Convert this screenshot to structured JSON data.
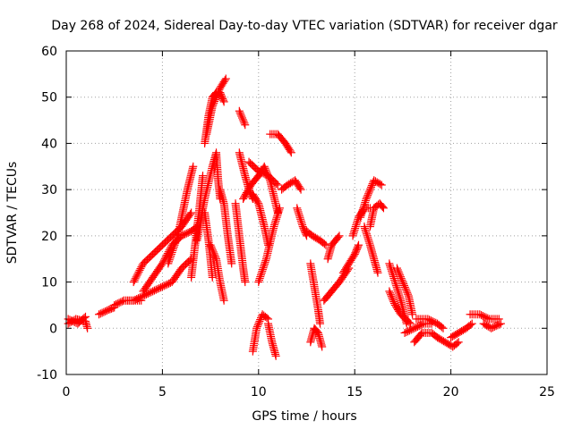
{
  "chart_data": {
    "type": "scatter",
    "title": "Day 268 of 2024, Sidereal Day-to-day VTEC variation (SDTVAR) for receiver dgar",
    "xlabel": "GPS time / hours",
    "ylabel": "SDTVAR / TECUs",
    "xlim": [
      0,
      25
    ],
    "ylim": [
      -10,
      60
    ],
    "xticks": [
      "0",
      "5",
      "10",
      "15",
      "20",
      "25"
    ],
    "yticks": [
      "-10",
      "0",
      "10",
      "20",
      "30",
      "40",
      "50",
      "60"
    ],
    "grid": true,
    "marker": "plus",
    "color": "#ff0000",
    "series": [
      {
        "name": "SDTVAR",
        "tracks": [
          [
            [
              0.1,
              1
            ],
            [
              0.5,
              2
            ],
            [
              1.0,
              1.5
            ],
            [
              1.1,
              0
            ]
          ],
          [
            [
              0.1,
              2
            ],
            [
              0.6,
              1
            ],
            [
              1.0,
              2.5
            ]
          ],
          [
            [
              1.7,
              3
            ],
            [
              2.2,
              4
            ],
            [
              2.5,
              4.5
            ]
          ],
          [
            [
              2.5,
              5
            ],
            [
              3.0,
              6
            ],
            [
              3.5,
              6
            ],
            [
              3.9,
              6
            ]
          ],
          [
            [
              3.0,
              6
            ],
            [
              3.5,
              6
            ],
            [
              4.0,
              7
            ],
            [
              4.5,
              8
            ],
            [
              5.0,
              9
            ],
            [
              5.5,
              10
            ],
            [
              6.0,
              13
            ],
            [
              6.5,
              15
            ]
          ],
          [
            [
              3.5,
              10
            ],
            [
              4.0,
              14
            ],
            [
              4.5,
              16
            ],
            [
              5.0,
              18
            ],
            [
              5.5,
              20
            ],
            [
              6.0,
              22
            ],
            [
              6.5,
              25
            ]
          ],
          [
            [
              4.0,
              8
            ],
            [
              4.5,
              11
            ],
            [
              5.0,
              14
            ],
            [
              5.5,
              18
            ],
            [
              6.0,
              20
            ],
            [
              6.5,
              21
            ],
            [
              6.8,
              22
            ]
          ],
          [
            [
              5.3,
              14
            ],
            [
              5.8,
              20
            ],
            [
              6.3,
              30
            ],
            [
              6.6,
              35
            ]
          ],
          [
            [
              6.5,
              11
            ],
            [
              6.9,
              25
            ],
            [
              7.1,
              33
            ]
          ],
          [
            [
              6.8,
              19
            ],
            [
              7.2,
              28
            ],
            [
              7.6,
              35
            ],
            [
              7.8,
              38
            ],
            [
              7.9,
              32
            ],
            [
              8.0,
              28
            ]
          ],
          [
            [
              7.2,
              40
            ],
            [
              7.4,
              46
            ],
            [
              7.6,
              50
            ],
            [
              7.8,
              51
            ],
            [
              8.0,
              51
            ],
            [
              8.2,
              49
            ]
          ],
          [
            [
              7.3,
              42
            ],
            [
              7.6,
              48
            ],
            [
              8.0,
              52
            ],
            [
              8.3,
              54
            ]
          ],
          [
            [
              7.2,
              25
            ],
            [
              7.4,
              19
            ],
            [
              7.6,
              11
            ]
          ],
          [
            [
              7.5,
              18
            ],
            [
              7.8,
              15
            ],
            [
              8.0,
              10
            ],
            [
              8.2,
              6
            ]
          ],
          [
            [
              8.0,
              30
            ],
            [
              8.2,
              27
            ],
            [
              8.4,
              20
            ],
            [
              8.6,
              14
            ]
          ],
          [
            [
              9.0,
              38
            ],
            [
              9.3,
              33
            ],
            [
              9.5,
              30
            ],
            [
              9.7,
              28
            ]
          ],
          [
            [
              9.0,
              47
            ],
            [
              9.3,
              44
            ]
          ],
          [
            [
              8.8,
              27
            ],
            [
              9.0,
              20
            ],
            [
              9.2,
              13
            ],
            [
              9.3,
              10
            ]
          ],
          [
            [
              9.7,
              29
            ],
            [
              10.0,
              27
            ],
            [
              10.3,
              22
            ],
            [
              10.5,
              18
            ]
          ],
          [
            [
              9.5,
              36
            ],
            [
              10.0,
              34
            ],
            [
              10.5,
              33
            ],
            [
              11.0,
              31
            ]
          ],
          [
            [
              9.2,
              28
            ],
            [
              9.6,
              31
            ],
            [
              10.0,
              33
            ],
            [
              10.3,
              35
            ],
            [
              10.6,
              32
            ],
            [
              11.0,
              25
            ]
          ],
          [
            [
              10.6,
              42
            ],
            [
              11.0,
              42
            ],
            [
              11.4,
              40
            ],
            [
              11.7,
              38
            ]
          ],
          [
            [
              10.0,
              10
            ],
            [
              10.4,
              15
            ],
            [
              10.8,
              22
            ],
            [
              11.1,
              26
            ]
          ],
          [
            [
              9.7,
              -5
            ],
            [
              9.9,
              0
            ],
            [
              10.2,
              3
            ],
            [
              10.5,
              2
            ]
          ],
          [
            [
              10.5,
              1
            ],
            [
              10.7,
              -3
            ],
            [
              10.9,
              -6
            ]
          ],
          [
            [
              11.2,
              30
            ],
            [
              11.5,
              31
            ],
            [
              11.9,
              32
            ],
            [
              12.2,
              30
            ]
          ],
          [
            [
              12.0,
              26
            ],
            [
              12.3,
              22
            ],
            [
              12.5,
              20
            ]
          ],
          [
            [
              12.5,
              21
            ],
            [
              12.8,
              20
            ],
            [
              13.2,
              19
            ],
            [
              13.5,
              18
            ]
          ],
          [
            [
              12.7,
              14
            ],
            [
              12.9,
              9
            ],
            [
              13.1,
              4
            ],
            [
              13.2,
              1
            ]
          ],
          [
            [
              12.7,
              -3
            ],
            [
              12.9,
              0
            ],
            [
              13.1,
              -1
            ],
            [
              13.3,
              -4
            ]
          ],
          [
            [
              13.4,
              6
            ],
            [
              13.8,
              8
            ],
            [
              14.2,
              10
            ],
            [
              14.7,
              13
            ]
          ],
          [
            [
              13.6,
              15
            ],
            [
              13.8,
              18
            ],
            [
              14.2,
              20
            ]
          ],
          [
            [
              14.4,
              12
            ],
            [
              14.7,
              14
            ],
            [
              15.0,
              16
            ],
            [
              15.2,
              18
            ]
          ],
          [
            [
              14.9,
              20
            ],
            [
              15.2,
              24
            ],
            [
              15.5,
              26
            ],
            [
              15.8,
              26
            ]
          ],
          [
            [
              15.3,
              24
            ],
            [
              15.6,
              28
            ],
            [
              16.0,
              32
            ],
            [
              16.4,
              31
            ]
          ],
          [
            [
              15.5,
              22
            ],
            [
              15.8,
              18
            ],
            [
              16.0,
              15
            ],
            [
              16.2,
              12
            ]
          ],
          [
            [
              15.8,
              22
            ],
            [
              16.0,
              26
            ],
            [
              16.3,
              27
            ],
            [
              16.5,
              26
            ]
          ],
          [
            [
              16.8,
              14
            ],
            [
              17.1,
              10
            ],
            [
              17.4,
              6
            ],
            [
              17.7,
              1
            ]
          ],
          [
            [
              16.8,
              8
            ],
            [
              17.1,
              5
            ],
            [
              17.4,
              3
            ],
            [
              17.9,
              1
            ]
          ],
          [
            [
              17.2,
              13
            ],
            [
              17.5,
              10
            ],
            [
              17.8,
              7
            ],
            [
              18.0,
              3
            ]
          ],
          [
            [
              17.6,
              -1
            ],
            [
              18.1,
              0
            ],
            [
              18.6,
              1
            ],
            [
              19.0,
              1
            ]
          ],
          [
            [
              18.1,
              -3
            ],
            [
              18.5,
              -1
            ],
            [
              19.0,
              -1
            ],
            [
              19.3,
              -2
            ]
          ],
          [
            [
              18.2,
              2
            ],
            [
              18.8,
              2
            ],
            [
              19.3,
              1
            ],
            [
              19.6,
              0
            ]
          ],
          [
            [
              19.3,
              -2
            ],
            [
              19.7,
              -3
            ],
            [
              20.1,
              -4
            ],
            [
              20.4,
              -3
            ]
          ],
          [
            [
              20.0,
              -2
            ],
            [
              20.4,
              -1
            ],
            [
              20.8,
              0
            ],
            [
              21.1,
              1
            ]
          ],
          [
            [
              21.0,
              3
            ],
            [
              21.5,
              3
            ],
            [
              22.0,
              2
            ],
            [
              22.5,
              2
            ]
          ],
          [
            [
              21.7,
              1
            ],
            [
              22.1,
              0
            ],
            [
              22.6,
              1
            ]
          ]
        ]
      }
    ]
  }
}
